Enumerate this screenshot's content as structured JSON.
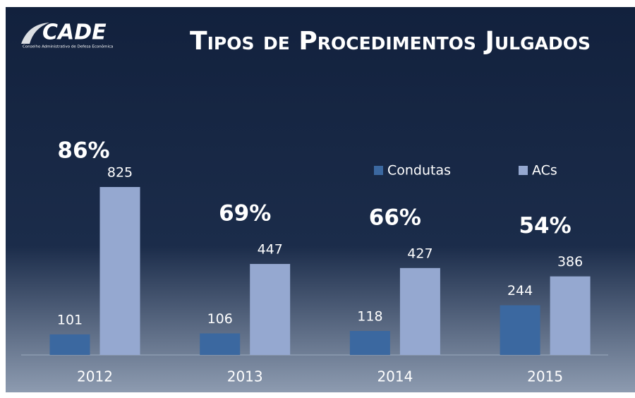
{
  "logo": {
    "name": "CADE",
    "subtitle": "Conselho Administrativo de Defesa Econômica"
  },
  "chart_data": {
    "type": "bar",
    "title": "Tipos de Procedimentos Julgados",
    "categories": [
      "2012",
      "2013",
      "2014",
      "2015"
    ],
    "series": [
      {
        "name": "Condutas",
        "color": "#3b68a0",
        "values": [
          101,
          106,
          118,
          244
        ]
      },
      {
        "name": "ACs",
        "color": "#95a8d0",
        "values": [
          825,
          447,
          427,
          386
        ]
      }
    ],
    "annotations": [
      "86%",
      "69%",
      "66%",
      "54%"
    ],
    "legend": "top-right"
  }
}
